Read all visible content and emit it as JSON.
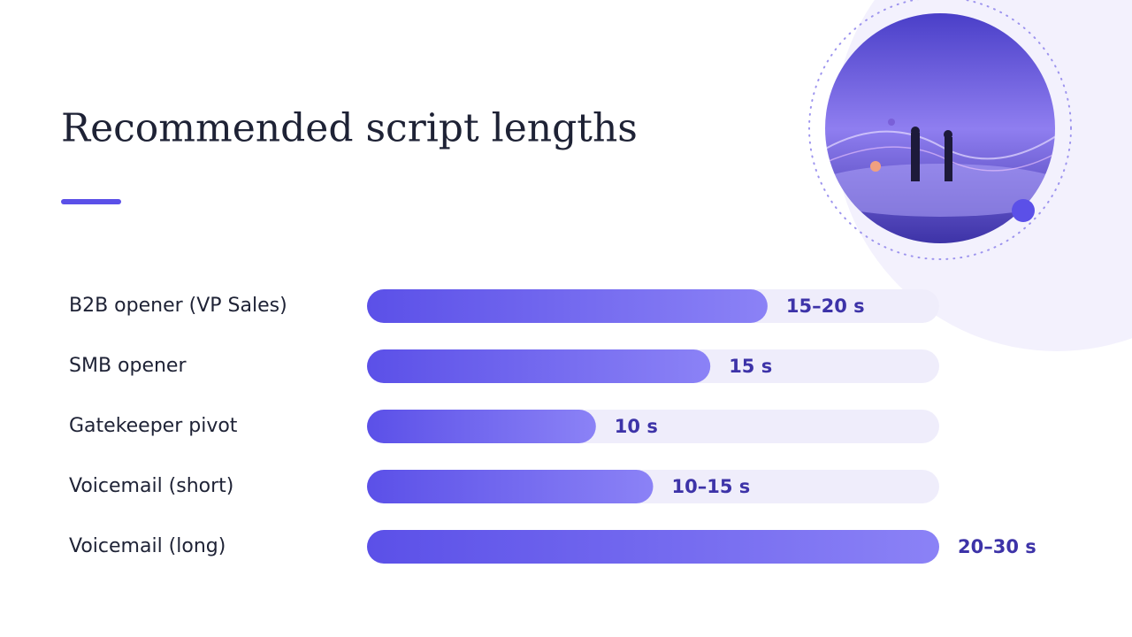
{
  "chart_data": {
    "type": "bar",
    "orientation": "horizontal",
    "title": "Recommended script lengths",
    "categories": [
      "B2B opener (VP Sales)",
      "SMB opener",
      "Gatekeeper pivot",
      "Voicemail (short)",
      "Voicemail (long)"
    ],
    "values": [
      17.5,
      15,
      10,
      12.5,
      25
    ],
    "value_labels": [
      "15–20 s",
      "15 s",
      "10 s",
      "10–15 s",
      "20–30 s"
    ],
    "xlim": [
      0,
      25
    ],
    "color": "#5b50e8"
  }
}
